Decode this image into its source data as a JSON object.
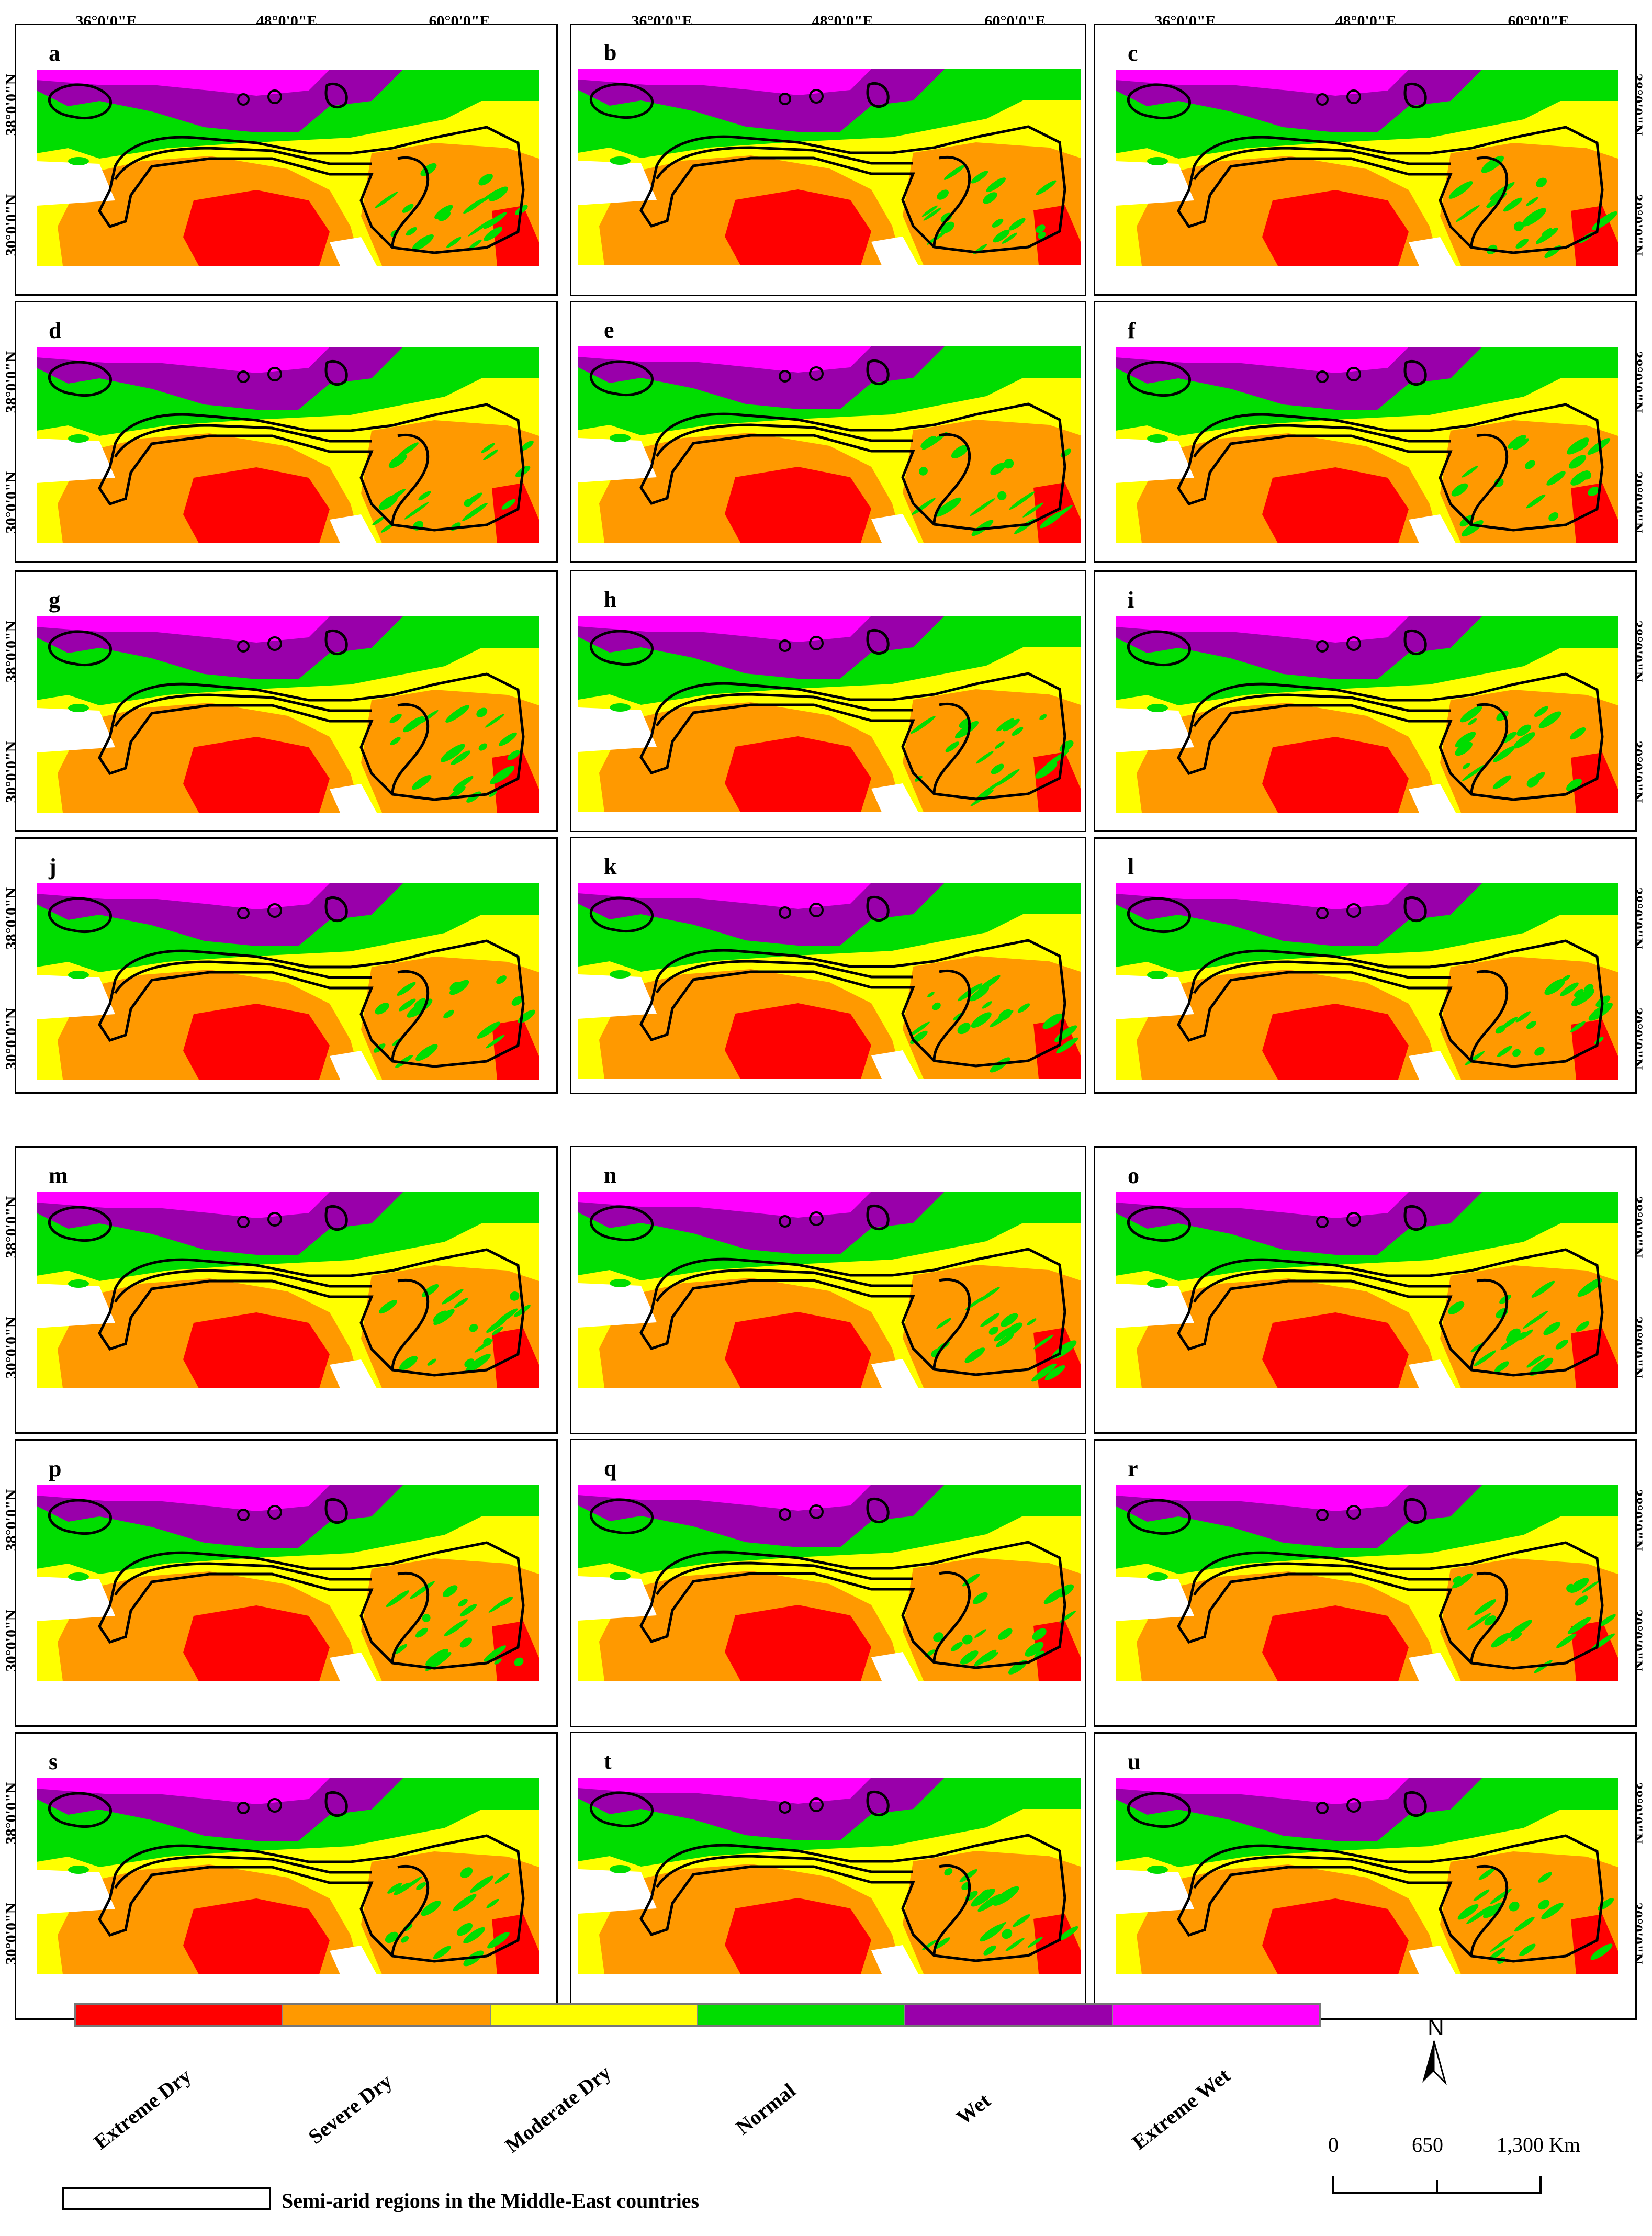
{
  "top_labels": [
    "36°0'0\"E",
    "48°0'0\"E",
    "60°0'0\"E"
  ],
  "side_labels": [
    "38°0'0\"N",
    "30°0'0\"N"
  ],
  "panels": [
    "a",
    "b",
    "c",
    "d",
    "e",
    "f",
    "g",
    "h",
    "i",
    "j",
    "k",
    "l",
    "m",
    "n",
    "o",
    "p",
    "q",
    "r",
    "s",
    "t",
    "u"
  ],
  "legend": {
    "classes": [
      {
        "label": "Extreme Dry",
        "color": "#ff0000"
      },
      {
        "label": "Severe Dry",
        "color": "#ff9900"
      },
      {
        "label": "Moderate Dry",
        "color": "#ffff00"
      },
      {
        "label": "Normal",
        "color": "#00dd00"
      },
      {
        "label": "Wet",
        "color": "#9900aa"
      },
      {
        "label": "Extreme Wet",
        "color": "#ff00ff"
      }
    ],
    "outline_label": "Semi-arid regions in the Middle-East countries"
  },
  "north_arrow": "N",
  "scale_bar": {
    "ticks": [
      "0",
      "650",
      "1,300"
    ],
    "unit": "Km"
  }
}
